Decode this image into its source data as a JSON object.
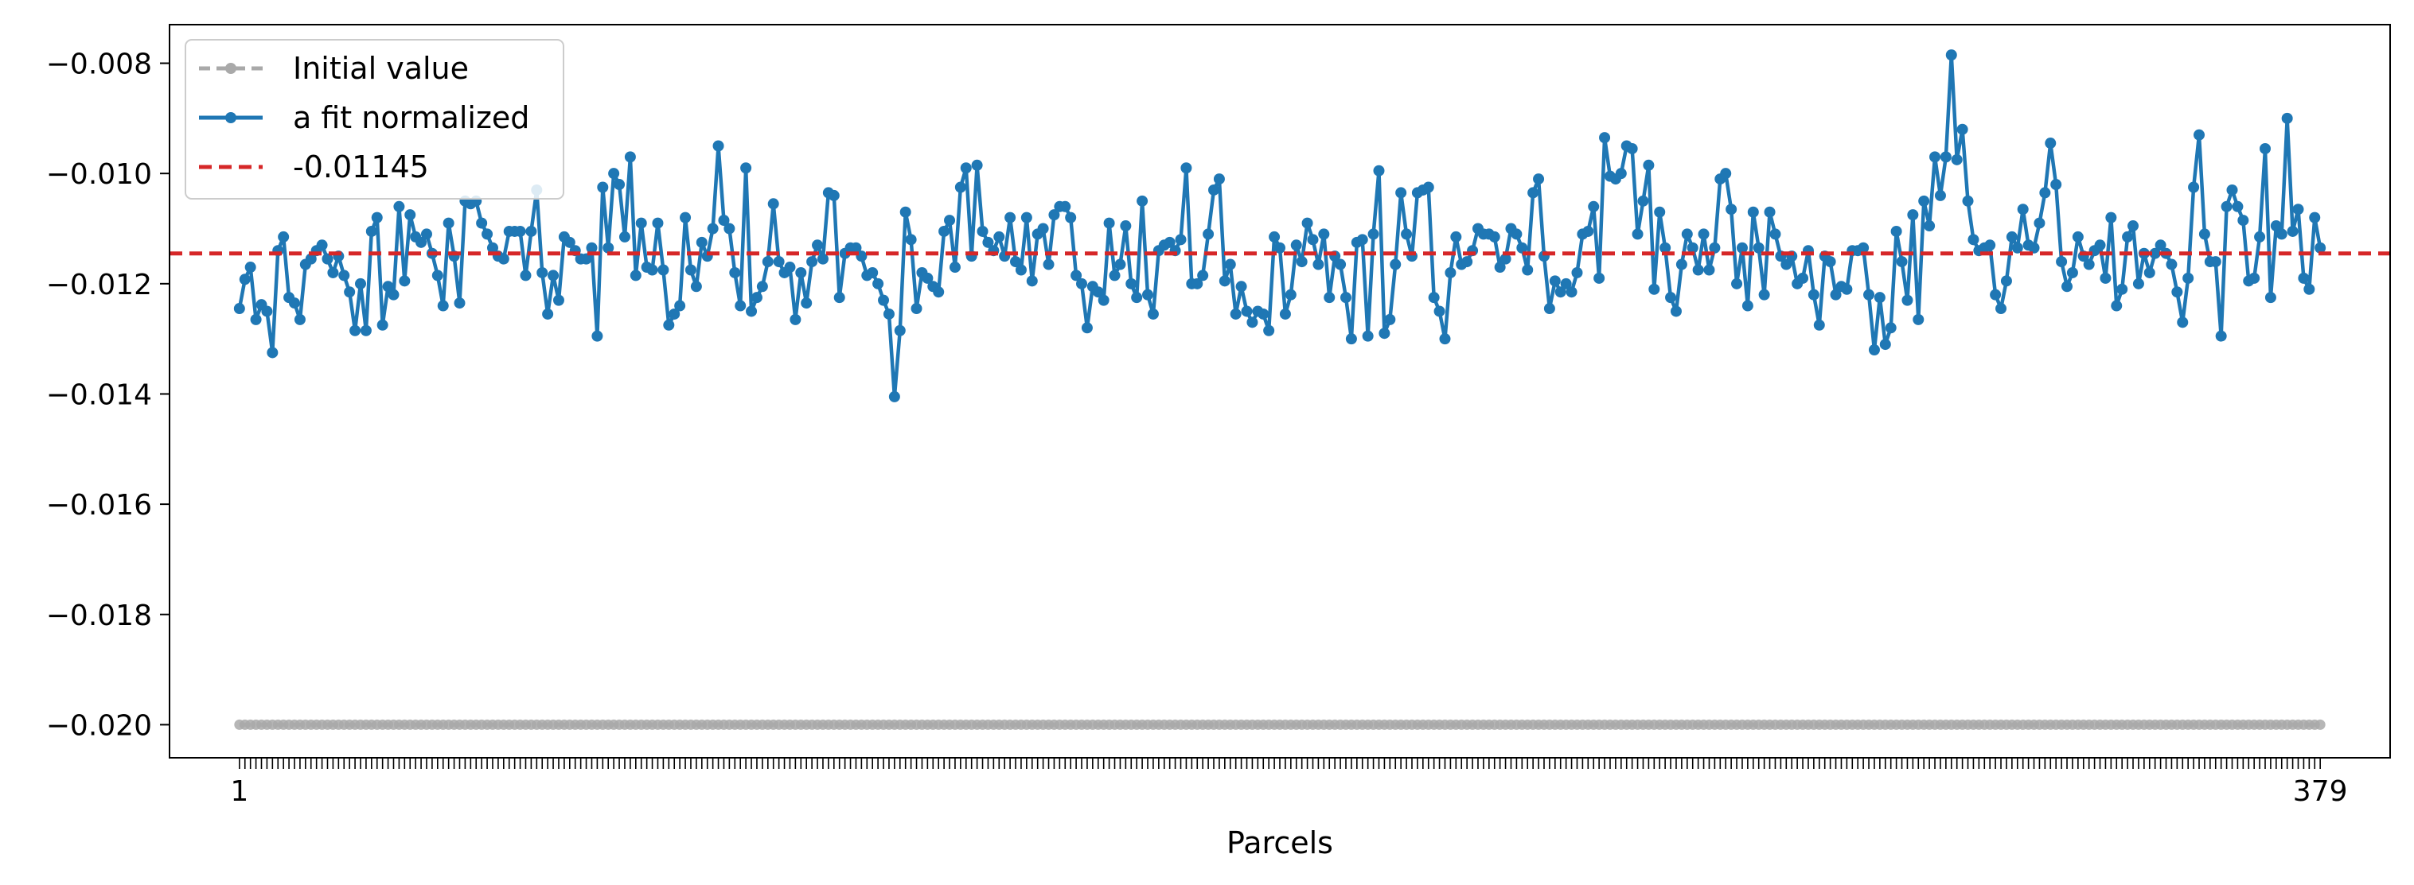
{
  "chart_data": {
    "type": "line",
    "xlabel": "Parcels",
    "ylabel": "",
    "title": "",
    "xlim": [
      -11.7,
      391.7
    ],
    "ylim": [
      -0.0206,
      -0.0073
    ],
    "x_ticks": [
      1,
      379
    ],
    "x_tick_labels": [
      "1",
      "379"
    ],
    "y_ticks": [
      -0.02,
      -0.018,
      -0.016,
      -0.014,
      -0.012,
      -0.01,
      -0.008
    ],
    "y_tick_labels": [
      "−0.020",
      "−0.018",
      "−0.016",
      "−0.014",
      "−0.012",
      "−0.010",
      "−0.008"
    ],
    "grid": false,
    "legend_position": "upper-left",
    "colors": {
      "initial": "#a9a9a9",
      "fit": "#1f77b4",
      "mean": "#d62728"
    },
    "initial_value": -0.02,
    "mean_value": -0.01145,
    "series": [
      {
        "name": "Initial value",
        "style": "dashed-marker"
      },
      {
        "name": "a fit normalized",
        "style": "solid-marker"
      },
      {
        "name": "-0.01145",
        "style": "dashed"
      }
    ],
    "fit_x_start": 1,
    "fit_values": [
      -0.01245,
      -0.01192,
      -0.0117,
      -0.01265,
      -0.01238,
      -0.0125,
      -0.01325,
      -0.0114,
      -0.01115,
      -0.01225,
      -0.01235,
      -0.01265,
      -0.01165,
      -0.01155,
      -0.0114,
      -0.0113,
      -0.01155,
      -0.0118,
      -0.0115,
      -0.01185,
      -0.01215,
      -0.01285,
      -0.012,
      -0.01285,
      -0.01105,
      -0.0108,
      -0.01275,
      -0.01205,
      -0.0122,
      -0.0106,
      -0.01195,
      -0.01075,
      -0.01115,
      -0.01125,
      -0.0111,
      -0.01145,
      -0.01185,
      -0.0124,
      -0.0109,
      -0.0115,
      -0.01235,
      -0.0105,
      -0.01055,
      -0.0105,
      -0.0109,
      -0.0111,
      -0.01135,
      -0.0115,
      -0.01155,
      -0.01105,
      -0.01105,
      -0.01105,
      -0.01185,
      -0.01105,
      -0.0103,
      -0.0118,
      -0.01255,
      -0.01185,
      -0.0123,
      -0.01115,
      -0.01125,
      -0.0114,
      -0.01155,
      -0.01155,
      -0.01135,
      -0.01295,
      -0.01025,
      -0.01135,
      -0.01,
      -0.0102,
      -0.01115,
      -0.0097,
      -0.01185,
      -0.0109,
      -0.0117,
      -0.01175,
      -0.0109,
      -0.01175,
      -0.01275,
      -0.01255,
      -0.0124,
      -0.0108,
      -0.01175,
      -0.01205,
      -0.01125,
      -0.0115,
      -0.011,
      -0.0095,
      -0.01085,
      -0.011,
      -0.0118,
      -0.0124,
      -0.0099,
      -0.0125,
      -0.01225,
      -0.01205,
      -0.0116,
      -0.01055,
      -0.0116,
      -0.0118,
      -0.0117,
      -0.01265,
      -0.0118,
      -0.01235,
      -0.0116,
      -0.0113,
      -0.01155,
      -0.01035,
      -0.0104,
      -0.01225,
      -0.01145,
      -0.01135,
      -0.01135,
      -0.0115,
      -0.01185,
      -0.0118,
      -0.012,
      -0.0123,
      -0.01255,
      -0.01405,
      -0.01285,
      -0.0107,
      -0.0112,
      -0.01245,
      -0.0118,
      -0.0119,
      -0.01205,
      -0.01215,
      -0.01105,
      -0.01085,
      -0.0117,
      -0.01025,
      -0.0099,
      -0.0115,
      -0.00985,
      -0.01105,
      -0.01125,
      -0.0114,
      -0.01115,
      -0.0115,
      -0.0108,
      -0.0116,
      -0.01175,
      -0.0108,
      -0.01195,
      -0.0111,
      -0.011,
      -0.01165,
      -0.01075,
      -0.0106,
      -0.0106,
      -0.0108,
      -0.01185,
      -0.012,
      -0.0128,
      -0.01205,
      -0.01215,
      -0.0123,
      -0.0109,
      -0.01185,
      -0.01165,
      -0.01095,
      -0.012,
      -0.01225,
      -0.0105,
      -0.0122,
      -0.01255,
      -0.0114,
      -0.0113,
      -0.01125,
      -0.0114,
      -0.0112,
      -0.0099,
      -0.012,
      -0.012,
      -0.01185,
      -0.0111,
      -0.0103,
      -0.0101,
      -0.01195,
      -0.01165,
      -0.01255,
      -0.01205,
      -0.0125,
      -0.0127,
      -0.0125,
      -0.01255,
      -0.01285,
      -0.01115,
      -0.01135,
      -0.01255,
      -0.0122,
      -0.0113,
      -0.0116,
      -0.0109,
      -0.0112,
      -0.01165,
      -0.0111,
      -0.01225,
      -0.0115,
      -0.01165,
      -0.01225,
      -0.013,
      -0.01125,
      -0.0112,
      -0.01295,
      -0.0111,
      -0.00995,
      -0.0129,
      -0.01265,
      -0.01165,
      -0.01035,
      -0.0111,
      -0.0115,
      -0.01035,
      -0.0103,
      -0.01025,
      -0.01225,
      -0.0125,
      -0.013,
      -0.0118,
      -0.01115,
      -0.01165,
      -0.0116,
      -0.0114,
      -0.011,
      -0.0111,
      -0.0111,
      -0.01115,
      -0.0117,
      -0.01155,
      -0.011,
      -0.0111,
      -0.01135,
      -0.01175,
      -0.01035,
      -0.0101,
      -0.0115,
      -0.01245,
      -0.01195,
      -0.01215,
      -0.012,
      -0.01215,
      -0.0118,
      -0.0111,
      -0.01105,
      -0.0106,
      -0.0119,
      -0.00935,
      -0.01005,
      -0.0101,
      -0.01,
      -0.0095,
      -0.00955,
      -0.0111,
      -0.0105,
      -0.00985,
      -0.0121,
      -0.0107,
      -0.01135,
      -0.01225,
      -0.0125,
      -0.01165,
      -0.0111,
      -0.01135,
      -0.01175,
      -0.0111,
      -0.01175,
      -0.01135,
      -0.0101,
      -0.01,
      -0.01065,
      -0.012,
      -0.01135,
      -0.0124,
      -0.0107,
      -0.01135,
      -0.0122,
      -0.0107,
      -0.0111,
      -0.0115,
      -0.01165,
      -0.0115,
      -0.012,
      -0.0119,
      -0.0114,
      -0.0122,
      -0.01275,
      -0.0115,
      -0.0116,
      -0.0122,
      -0.01205,
      -0.0121,
      -0.0114,
      -0.0114,
      -0.01135,
      -0.0122,
      -0.0132,
      -0.01225,
      -0.0131,
      -0.0128,
      -0.01105,
      -0.0116,
      -0.0123,
      -0.01075,
      -0.01265,
      -0.0105,
      -0.01095,
      -0.0097,
      -0.0104,
      -0.0097,
      -0.00785,
      -0.00975,
      -0.0092,
      -0.0105,
      -0.0112,
      -0.0114,
      -0.01135,
      -0.0113,
      -0.0122,
      -0.01245,
      -0.01195,
      -0.01115,
      -0.01135,
      -0.01065,
      -0.0113,
      -0.01135,
      -0.0109,
      -0.01035,
      -0.00945,
      -0.0102,
      -0.0116,
      -0.01205,
      -0.0118,
      -0.01115,
      -0.0115,
      -0.01165,
      -0.0114,
      -0.0113,
      -0.0119,
      -0.0108,
      -0.0124,
      -0.0121,
      -0.01115,
      -0.01095,
      -0.012,
      -0.01145,
      -0.0118,
      -0.01145,
      -0.0113,
      -0.01145,
      -0.01165,
      -0.01215,
      -0.0127,
      -0.0119,
      -0.01025,
      -0.0093,
      -0.0111,
      -0.0116,
      -0.0116,
      -0.01295,
      -0.0106,
      -0.0103,
      -0.0106,
      -0.01085,
      -0.01195,
      -0.0119,
      -0.01115,
      -0.00955,
      -0.01225,
      -0.01095,
      -0.0111,
      -0.009,
      -0.01105,
      -0.01065,
      -0.0119,
      -0.0121,
      -0.0108,
      -0.01135
    ]
  }
}
